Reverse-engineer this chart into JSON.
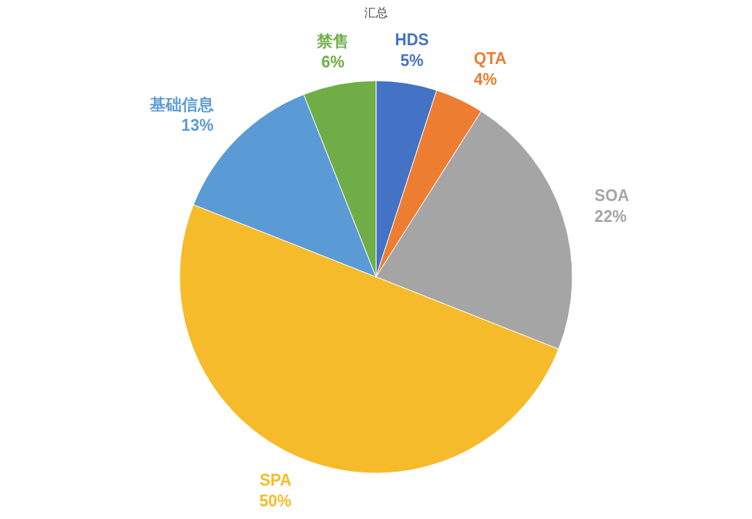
{
  "chart_data": {
    "type": "pie",
    "title": "汇总",
    "categories": [
      "HDS",
      "QTA",
      "SOA",
      "SPA",
      "基础信息",
      "禁售"
    ],
    "values": [
      5,
      4,
      22,
      50,
      13,
      6
    ],
    "colors": [
      "#4472c4",
      "#ed7d31",
      "#a5a5a5",
      "#f6bb2a",
      "#5b9bd5",
      "#70ad47"
    ],
    "value_labels": [
      "5%",
      "4%",
      "22%",
      "50%",
      "13%",
      "6%"
    ]
  }
}
